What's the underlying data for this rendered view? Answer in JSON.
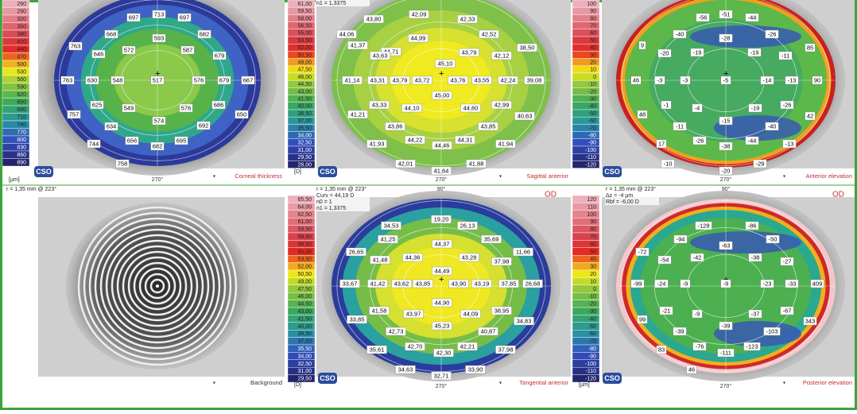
{
  "panels": [
    {
      "scale": {
        "labels": [
          "260",
          "290",
          "320",
          "350",
          "380",
          "410",
          "440",
          "470",
          "500",
          "530",
          "560",
          "590",
          "620",
          "650",
          "680",
          "710",
          "740",
          "770",
          "800",
          "830",
          "860",
          "890"
        ],
        "unit": "[µm]"
      },
      "caption": "Corneal thickness",
      "logo": "CSO",
      "angle_bottom": "270°",
      "map_labels": [
        "697",
        "713",
        "697",
        "668",
        "593",
        "682",
        "763",
        "646",
        "572",
        "587",
        "679",
        "763",
        "630",
        "548",
        "517",
        "576",
        "679",
        "667",
        "625",
        "549",
        "576",
        "686",
        "757",
        "650",
        "574",
        "634",
        "692",
        "656",
        "695",
        "744",
        "682",
        "758"
      ]
    },
    {
      "scale": {
        "labels": [
          "61,00",
          "59,50",
          "58,00",
          "56,50",
          "55,00",
          "53,50",
          "52,00",
          "50,50",
          "49,00",
          "47,50",
          "46,00",
          "44,50",
          "43,00",
          "41,50",
          "40,00",
          "38,50",
          "37,00",
          "35,50",
          "34,00",
          "32,50",
          "31,00",
          "29,50",
          "28,00"
        ],
        "unit": "[D]"
      },
      "caption": "Sagittal anterior",
      "logo": "CSO",
      "angle_bottom": "270°",
      "info": [
        "n1 = 1,3375"
      ],
      "map_labels": [
        "42,09",
        "43,80",
        "42,33",
        "44,06",
        "44,99",
        "42,52",
        "41,37",
        "44,71",
        "43,63",
        "43,79",
        "38,50",
        "42,12",
        "45,10",
        "41,14",
        "43,31",
        "43,79",
        "43,72",
        "43,76",
        "43,55",
        "42,24",
        "39,08",
        "45,00",
        "43,33",
        "44,10",
        "44,60",
        "42,99",
        "41,21",
        "40,63",
        "43,86",
        "43,85",
        "44,22",
        "44,46",
        "44,31",
        "41,93",
        "41,94",
        "42,01",
        "41,88",
        "41,64"
      ]
    },
    {
      "scale": {
        "labels": [
          "100",
          "90",
          "80",
          "70",
          "60",
          "50",
          "40",
          "30",
          "20",
          "10",
          "0",
          "-10",
          "-20",
          "-30",
          "-40",
          "-50",
          "-60",
          "-70",
          "-80",
          "-90",
          "-100",
          "-110",
          "-120"
        ]
      },
      "caption": "Anterior elevation",
      "logo": "CSO",
      "angle_bottom": "270°",
      "map_labels": [
        "-56",
        "-51",
        "-44",
        "-40",
        "-28",
        "-26",
        "9",
        "85",
        "-20",
        "-19",
        "-19",
        "-11",
        "46",
        "-3",
        "-3",
        "-5",
        "-14",
        "-13",
        "90",
        "-1",
        "-4",
        "-19",
        "-26",
        "48",
        "42",
        "-11",
        "-15",
        "-40",
        "-26",
        "-44",
        "17",
        "-38",
        "-13",
        "-10",
        "-29",
        "-20"
      ]
    },
    {
      "caption": "Background",
      "info": [
        "r = 1,35 mm @ 223°"
      ]
    },
    {
      "scale": {
        "labels": [
          "65,50",
          "64,00",
          "62,50",
          "61,00",
          "59,50",
          "58,00",
          "56,50",
          "55,00",
          "53,50",
          "52,00",
          "50,50",
          "49,00",
          "47,50",
          "46,00",
          "44,50",
          "43,00",
          "41,50",
          "40,00",
          "38,50",
          "37,00",
          "35,50",
          "34,00",
          "32,50",
          "31,00",
          "29,50"
        ],
        "unit": "[D]"
      },
      "caption": "Tangential anterior",
      "logo": "CSO",
      "angle_top": "90°",
      "angle_bottom": "270°",
      "eye": "OD",
      "info": [
        "r = 1,35 mm @ 223°",
        "Curv = 44,19 D",
        "n0 = 1",
        "n1 = 1,3375"
      ],
      "map_labels": [
        "19,20",
        "34,53",
        "26,13",
        "41,25",
        "35,69",
        "26,65",
        "11,66",
        "41,48",
        "44,36",
        "43,28",
        "37,98",
        "44,37",
        "44,49",
        "33,67",
        "41,42",
        "43,62",
        "43,85",
        "43,90",
        "43,19",
        "37,85",
        "26,68",
        "44,90",
        "41,58",
        "43,97",
        "44,09",
        "38,95",
        "33,85",
        "34,83",
        "42,73",
        "45,23",
        "40,87",
        "35,61",
        "42,70",
        "42,30",
        "42,21",
        "37,98",
        "34,63",
        "33,90",
        "32,71"
      ]
    },
    {
      "scale": {
        "labels": [
          "120",
          "110",
          "100",
          "90",
          "80",
          "70",
          "60",
          "50",
          "40",
          "30",
          "20",
          "10",
          "0",
          "-10",
          "-20",
          "-30",
          "-40",
          "-50",
          "-60",
          "-70",
          "-80",
          "-90",
          "-100",
          "-110",
          "-120"
        ],
        "unit": "[µm]"
      },
      "caption": "Posterior elevation",
      "logo": "CSO",
      "angle_top": "90°",
      "angle_bottom": "270°",
      "eye": "OD",
      "info": [
        "r = 1,35 mm @ 223°",
        "Δz = -4 µm",
        "Rbf = -6,00 D"
      ],
      "map_labels": [
        "-128",
        "-86",
        "-94",
        "-50",
        "-63",
        "-72",
        "-54",
        "-42",
        "-38",
        "-27",
        "-99",
        "-24",
        "-9",
        "-9",
        "-23",
        "-33",
        "409",
        "-21",
        "-9",
        "-37",
        "-67",
        "99",
        "343",
        "-39",
        "-39",
        "-103",
        "-76",
        "-123",
        "83",
        "-111",
        "46"
      ]
    }
  ]
}
